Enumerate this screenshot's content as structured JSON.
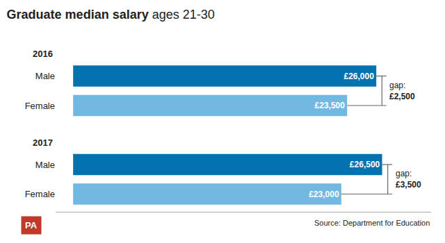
{
  "chart_data": {
    "type": "bar",
    "orientation": "horizontal",
    "title": "Graduate median salary",
    "subtitle": " ages 21-30",
    "categories": [
      "2016",
      "2017"
    ],
    "series": [
      {
        "name": "Male",
        "color": "#0572B0",
        "values": [
          26000,
          26500
        ],
        "value_labels": [
          "£26,000",
          "£26,500"
        ]
      },
      {
        "name": "Female",
        "color": "#72B8E0",
        "values": [
          23500,
          23000
        ],
        "value_labels": [
          "£23,500",
          "£23,000"
        ]
      }
    ],
    "data_labels": true,
    "tick_labels": "y",
    "grid": false,
    "xlim": [
      -1500,
      30700
    ],
    "annotations": [
      {
        "category": "2016",
        "text": [
          "gap:",
          "£2,500"
        ]
      },
      {
        "category": "2017",
        "text": [
          "gap:",
          "£3,500"
        ]
      }
    ],
    "source": "Source: Department for Education",
    "logo": {
      "text": "PA",
      "color": "#c0392b"
    }
  }
}
